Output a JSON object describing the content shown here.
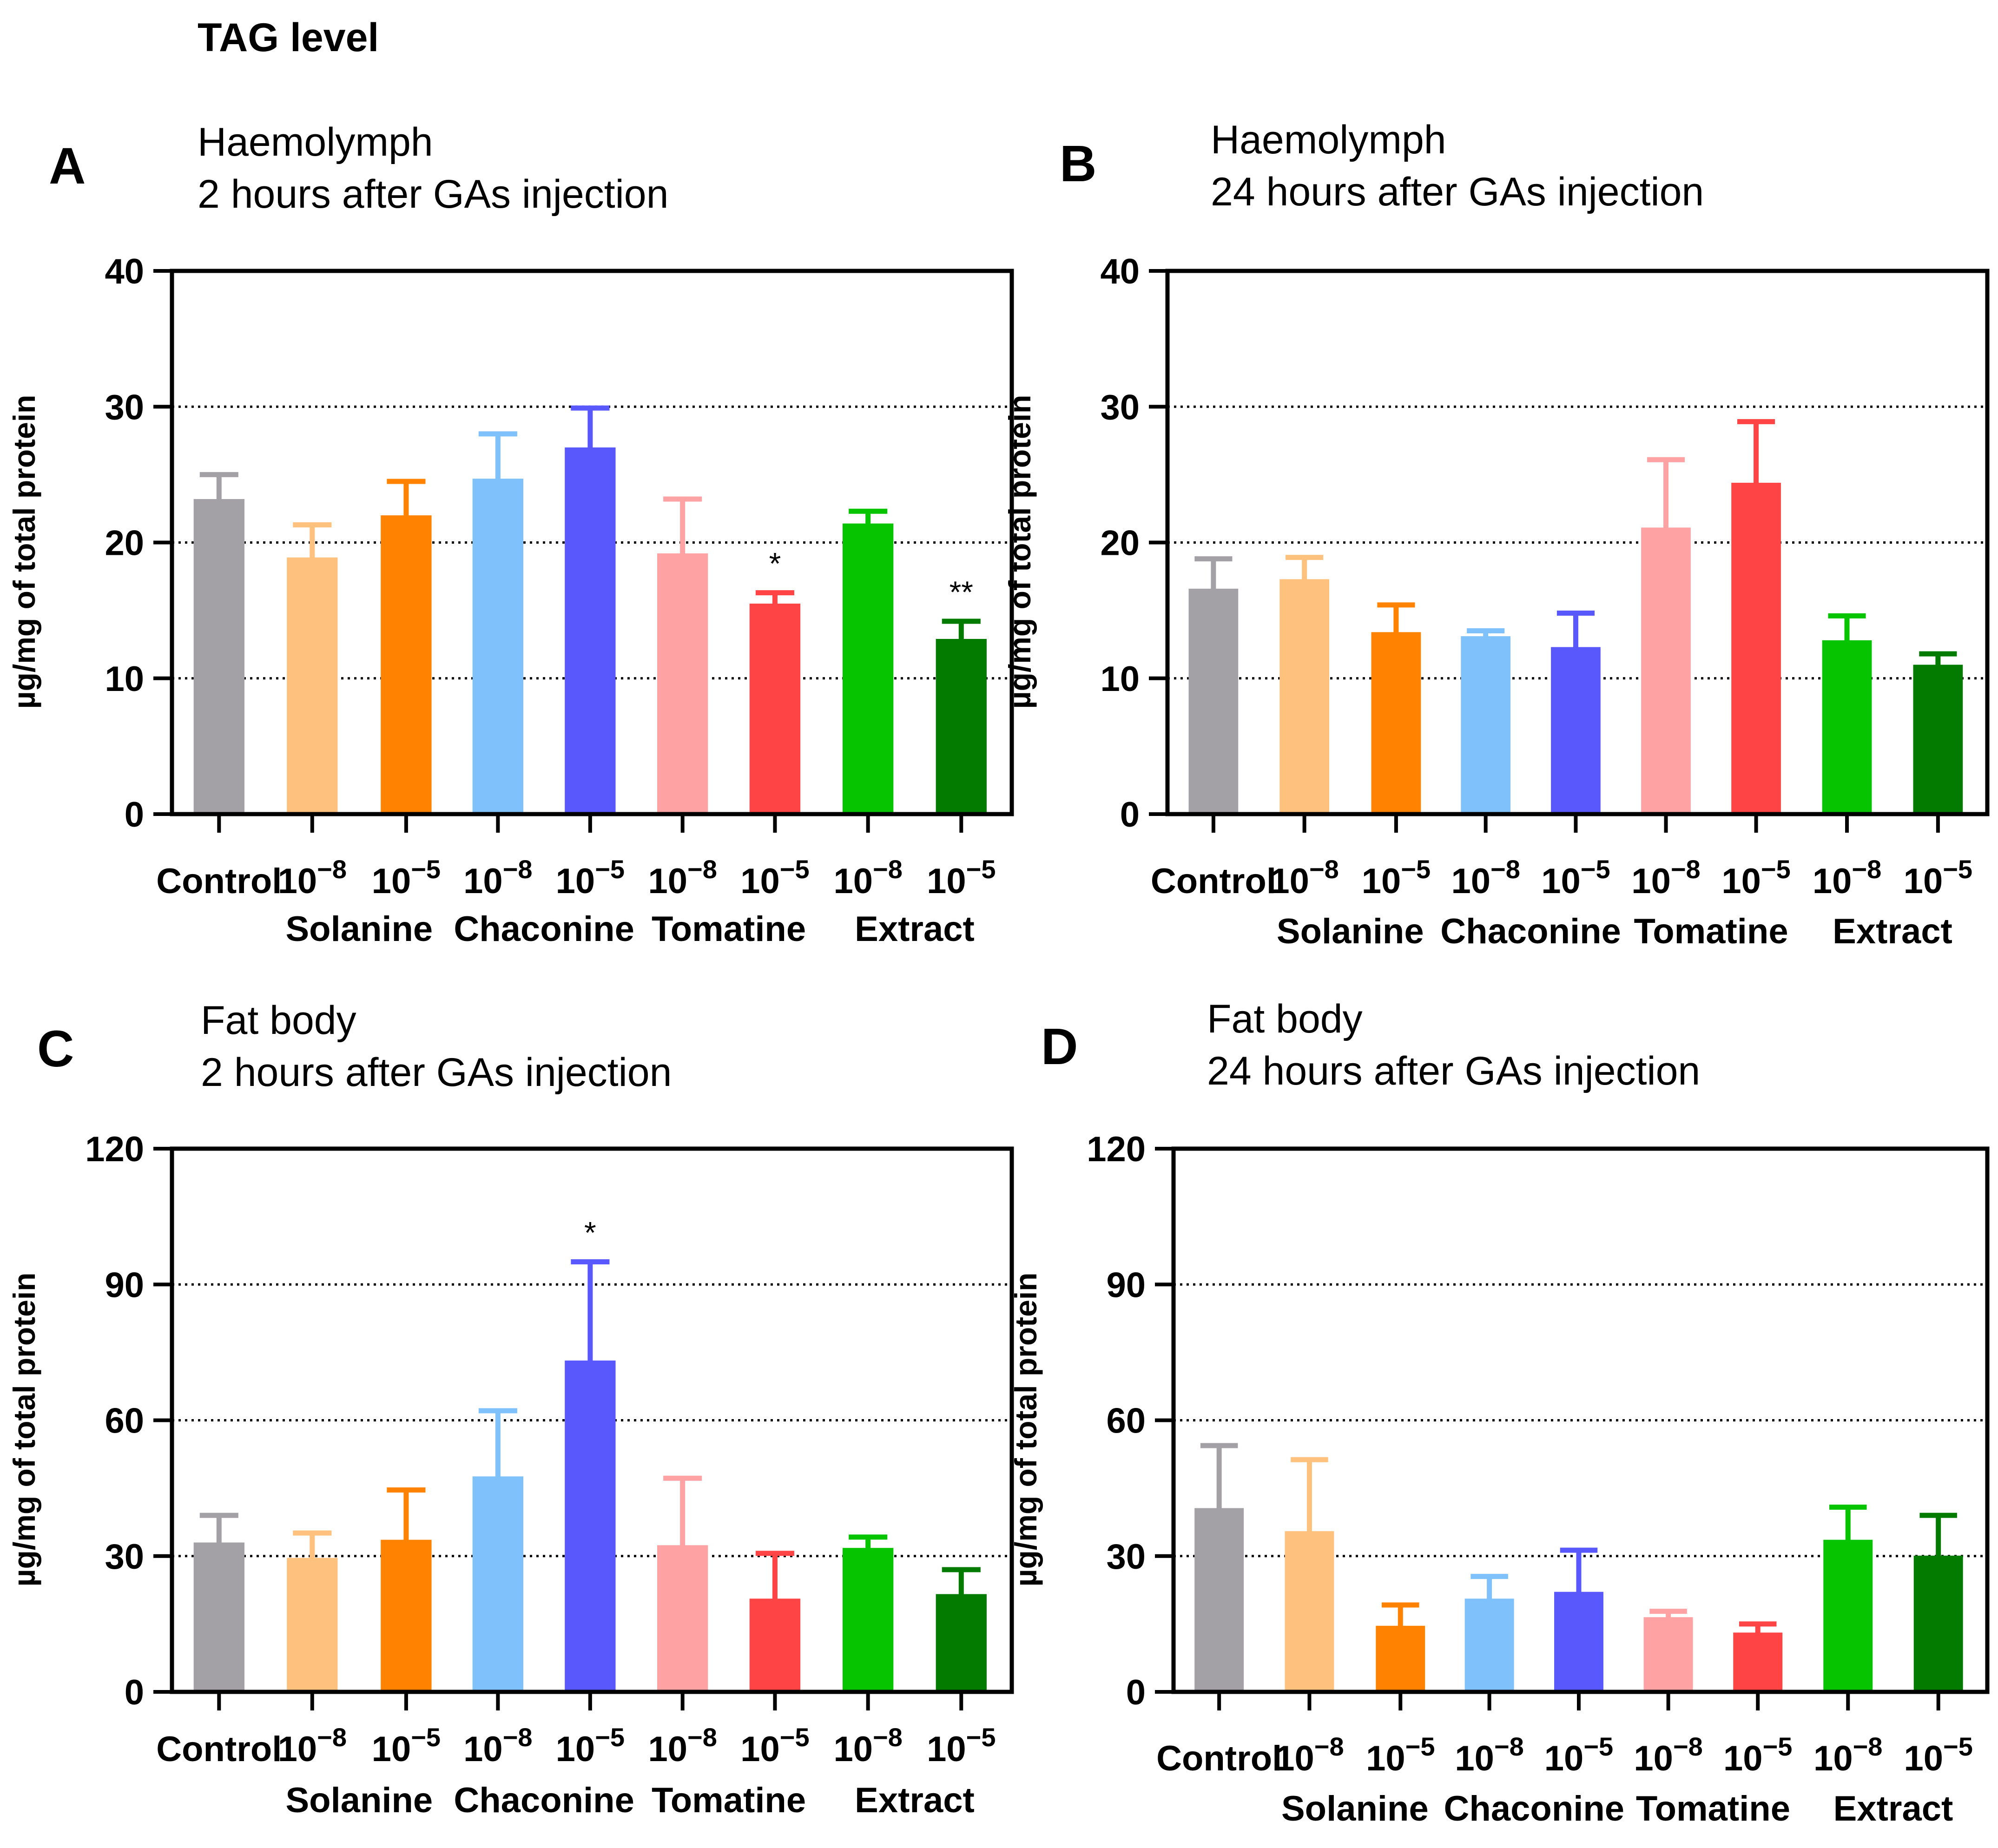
{
  "figure": {
    "header": "TAG level"
  },
  "colors": {
    "Control": "#a4a1a6",
    "Solanine_1e-8": "#fec27e",
    "Solanine_1e-5": "#ff8200",
    "Chaconine_1e-8": "#7fc1fb",
    "Chaconine_1e-5": "#5858fd",
    "Tomatine_1e-8": "#fea2a3",
    "Tomatine_1e-5": "#fe4444",
    "Extract_1e-8": "#06c400",
    "Extract_1e-5": "#037b00"
  },
  "chart_data": [
    {
      "panel": "A",
      "type": "bar",
      "title_line1": "Haemolymph",
      "title_line2": "2 hours after GAs injection",
      "ylabel": "µg/mg of total protein",
      "ylim": [
        0,
        40
      ],
      "yticks": [
        "0",
        "10",
        "20",
        "30",
        "40"
      ],
      "grid": "dotted horizontal at 10, 20, 30",
      "categories": [
        "Control",
        "Solanine 10^-8",
        "Solanine 10^-5",
        "Chaconine 10^-8",
        "Chaconine 10^-5",
        "Tomatine 10^-8",
        "Tomatine 10^-5",
        "Extract 10^-8",
        "Extract 10^-5"
      ],
      "values": [
        23.2,
        18.9,
        22.0,
        24.7,
        27.0,
        19.2,
        15.5,
        21.4,
        12.9
      ],
      "errors": [
        1.8,
        2.4,
        2.5,
        3.3,
        2.9,
        4.0,
        0.8,
        0.9,
        1.3
      ],
      "significance": [
        "",
        "",
        "",
        "",
        "",
        "",
        "*",
        "",
        "**"
      ]
    },
    {
      "panel": "B",
      "type": "bar",
      "title_line1": "Haemolymph",
      "title_line2": "24 hours after GAs injection",
      "ylabel": "µg/mg of total protein",
      "ylim": [
        0,
        40
      ],
      "yticks": [
        "0",
        "10",
        "20",
        "30",
        "40"
      ],
      "grid": "dotted horizontal at 10, 20, 30",
      "categories": [
        "Control",
        "Solanine 10^-8",
        "Solanine 10^-5",
        "Chaconine 10^-8",
        "Chaconine 10^-5",
        "Tomatine 10^-8",
        "Tomatine 10^-5",
        "Extract 10^-8",
        "Extract 10^-5"
      ],
      "values": [
        16.6,
        17.3,
        13.4,
        13.1,
        12.3,
        21.1,
        24.4,
        12.8,
        11.0
      ],
      "errors": [
        2.2,
        1.6,
        2.0,
        0.4,
        2.5,
        5.0,
        4.5,
        1.8,
        0.8
      ],
      "significance": [
        "",
        "",
        "",
        "",
        "",
        "",
        "",
        "",
        ""
      ]
    },
    {
      "panel": "C",
      "type": "bar",
      "title_line1": "Fat body",
      "title_line2": "2 hours after GAs injection",
      "ylabel": "µg/mg of total protein",
      "ylim": [
        0,
        120
      ],
      "yticks": [
        "0",
        "30",
        "60",
        "90",
        "120"
      ],
      "grid": "dotted horizontal at 30, 60, 90",
      "categories": [
        "Control",
        "Solanine 10^-8",
        "Solanine 10^-5",
        "Chaconine 10^-8",
        "Chaconine 10^-5",
        "Tomatine 10^-8",
        "Tomatine 10^-5",
        "Extract 10^-8",
        "Extract 10^-5"
      ],
      "values": [
        33.0,
        29.6,
        33.6,
        47.6,
        73.2,
        32.4,
        20.6,
        31.8,
        21.6
      ],
      "errors": [
        6.0,
        5.5,
        11.0,
        14.5,
        21.8,
        14.8,
        10.0,
        2.4,
        5.4
      ],
      "significance": [
        "",
        "",
        "",
        "",
        "*",
        "",
        "",
        "",
        ""
      ]
    },
    {
      "panel": "D",
      "type": "bar",
      "title_line1": "Fat body",
      "title_line2": "24 hours after GAs injection",
      "ylabel": "µg/mg of total protein",
      "ylim": [
        0,
        120
      ],
      "yticks": [
        "0",
        "30",
        "60",
        "90",
        "120"
      ],
      "grid": "dotted horizontal at 30, 60, 90",
      "categories": [
        "Control",
        "Solanine 10^-8",
        "Solanine 10^-5",
        "Chaconine 10^-8",
        "Chaconine 10^-5",
        "Tomatine 10^-8",
        "Tomatine 10^-5",
        "Extract 10^-8",
        "Extract 10^-5"
      ],
      "values": [
        40.6,
        35.5,
        14.6,
        20.6,
        22.1,
        16.5,
        13.1,
        33.6,
        30.1
      ],
      "errors": [
        13.8,
        15.8,
        4.6,
        4.9,
        9.2,
        1.3,
        1.9,
        7.2,
        8.9
      ],
      "significance": [
        "",
        "",
        "",
        "",
        "",
        "",
        "",
        "",
        ""
      ]
    }
  ],
  "xaxis": {
    "control_label": "Control",
    "dose_base": "10",
    "dose_low_exp": "−8",
    "dose_high_exp": "−5",
    "groups": [
      "Solanine",
      "Chaconine",
      "Tomatine",
      "Extract"
    ]
  }
}
